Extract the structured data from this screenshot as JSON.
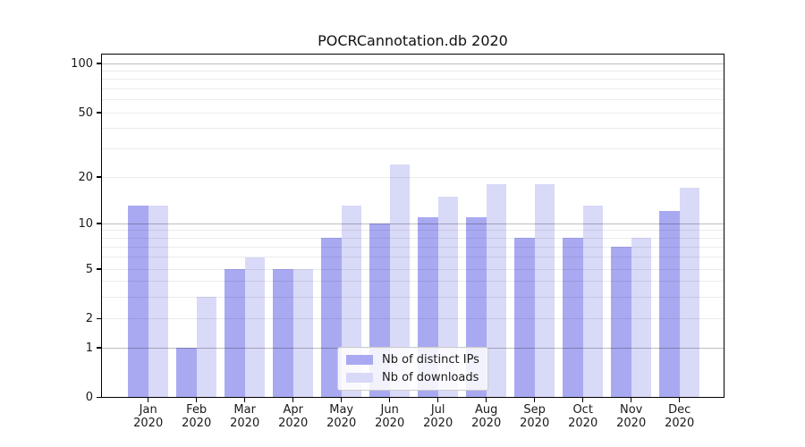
{
  "title": "POCRCannotation.db 2020",
  "chart_data": {
    "type": "bar",
    "title": "POCRCannotation.db 2020",
    "categories": [
      {
        "month": "Jan",
        "year": "2020"
      },
      {
        "month": "Feb",
        "year": "2020"
      },
      {
        "month": "Mar",
        "year": "2020"
      },
      {
        "month": "Apr",
        "year": "2020"
      },
      {
        "month": "May",
        "year": "2020"
      },
      {
        "month": "Jun",
        "year": "2020"
      },
      {
        "month": "Jul",
        "year": "2020"
      },
      {
        "month": "Aug",
        "year": "2020"
      },
      {
        "month": "Sep",
        "year": "2020"
      },
      {
        "month": "Oct",
        "year": "2020"
      },
      {
        "month": "Nov",
        "year": "2020"
      },
      {
        "month": "Dec",
        "year": "2020"
      }
    ],
    "series": [
      {
        "name": "Nb of distinct IPs",
        "color": "#a9a9f2",
        "values": [
          13,
          1,
          5,
          5,
          8,
          10,
          11,
          11,
          8,
          8,
          7,
          12
        ]
      },
      {
        "name": "Nb of downloads",
        "color": "#d9d9f8",
        "values": [
          13,
          3,
          6,
          5,
          13,
          24,
          15,
          18,
          18,
          13,
          8,
          17
        ]
      }
    ],
    "yaxis": {
      "scale": "symlog",
      "tick_labels": [
        "100",
        "50",
        "20",
        "10",
        "5",
        "2",
        "1",
        "0"
      ],
      "tick_values": [
        100,
        50,
        20,
        10,
        5,
        2,
        1,
        0
      ],
      "major_grid_values": [
        1,
        10,
        100
      ],
      "minor_grid_values": [
        2,
        3,
        4,
        5,
        6,
        7,
        8,
        9,
        20,
        30,
        40,
        50,
        60,
        70,
        80,
        90
      ],
      "ylim": [
        0,
        130
      ]
    },
    "xlabel": "",
    "ylabel": "",
    "grid": true,
    "legend_position": "lower center"
  },
  "colors": {
    "bar_distinct_ips": "#a9a9f2",
    "bar_downloads": "#d9d9f8",
    "major_grid": "#bdbdbd",
    "minor_grid": "#e9e9e9",
    "axis": "#000000",
    "background": "#ffffff"
  }
}
